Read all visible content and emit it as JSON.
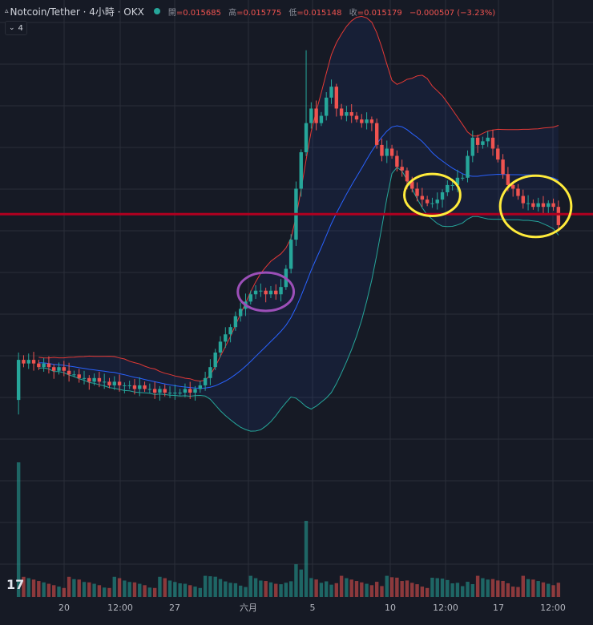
{
  "header": {
    "exchange_icon": "triangle-icon",
    "symbol": "Notcoin/Tether · 4小時 · OKX",
    "open_label": "開",
    "open_value": "=0.015685",
    "high_label": "高",
    "high_value": "=0.015775",
    "low_label": "低",
    "low_value": "=0.015148",
    "close_label": "收",
    "close_value": "=0.015179",
    "change_value": "−0.000507 (−3.23%)"
  },
  "indicator_toggle": {
    "icon": "chevron-down-icon",
    "count": "4"
  },
  "logo": "17",
  "colors": {
    "background": "#161a25",
    "grid": "#2a2e39",
    "up": "#26a69a",
    "down": "#ef5350",
    "upper_band": "#e53935",
    "lower_band": "#26a69a",
    "middle_band": "#2962ff",
    "support_line": "#b00020",
    "highlight_purple": "#9c4fb8",
    "highlight_yellow": "#ffeb3b"
  },
  "chart_data": {
    "type": "candlestick",
    "title": "Notcoin/Tether · 4小時 · OKX",
    "x_tick_labels": [
      "20",
      "12:00",
      "27",
      "六月",
      "5",
      "10",
      "12:00",
      "17",
      "12:00"
    ],
    "close_series": [
      0.0115,
      0.0114,
      0.0115,
      0.0114,
      0.0113,
      0.0114,
      0.0113,
      0.0112,
      0.0113,
      0.0112,
      0.0111,
      0.0111,
      0.011,
      0.011,
      0.0109,
      0.011,
      0.0109,
      0.0109,
      0.0108,
      0.0109,
      0.0108,
      0.0108,
      0.0108,
      0.0107,
      0.0108,
      0.0107,
      0.0107,
      0.0106,
      0.0107,
      0.0106,
      0.0106,
      0.0106,
      0.0106,
      0.0107,
      0.0106,
      0.0107,
      0.0108,
      0.011,
      0.0113,
      0.0117,
      0.012,
      0.0122,
      0.0124,
      0.0127,
      0.0129,
      0.0131,
      0.0133,
      0.0134,
      0.0134,
      0.0133,
      0.0134,
      0.0133,
      0.0135,
      0.014,
      0.0148,
      0.0162,
      0.0172,
      0.018,
      0.0184,
      0.018,
      0.0182,
      0.0187,
      0.019,
      0.0184,
      0.0182,
      0.0183,
      0.0182,
      0.0181,
      0.018,
      0.0181,
      0.018,
      0.0174,
      0.0171,
      0.0173,
      0.0171,
      0.0168,
      0.0167,
      0.0164,
      0.0162,
      0.016,
      0.0159,
      0.0158,
      0.0158,
      0.0159,
      0.0161,
      0.0163,
      0.0163,
      0.0165,
      0.0165,
      0.0171,
      0.0176,
      0.0174,
      0.0175,
      0.0176,
      0.0173,
      0.017,
      0.0166,
      0.0163,
      0.0162,
      0.016,
      0.0158,
      0.0158,
      0.0157,
      0.0158,
      0.0157,
      0.0158,
      0.0157,
      0.0152
    ],
    "support_level": 0.0155,
    "highlight_regions": [
      {
        "label": "",
        "color": "purple",
        "start_index": 46,
        "end_index": 52
      },
      {
        "label": "",
        "color": "yellow",
        "start_index": 79,
        "end_index": 85
      },
      {
        "label": "",
        "color": "yellow",
        "start_index": 98,
        "end_index": 107
      }
    ],
    "ylim": [
      0.0095,
      0.0205
    ],
    "grid": true
  }
}
